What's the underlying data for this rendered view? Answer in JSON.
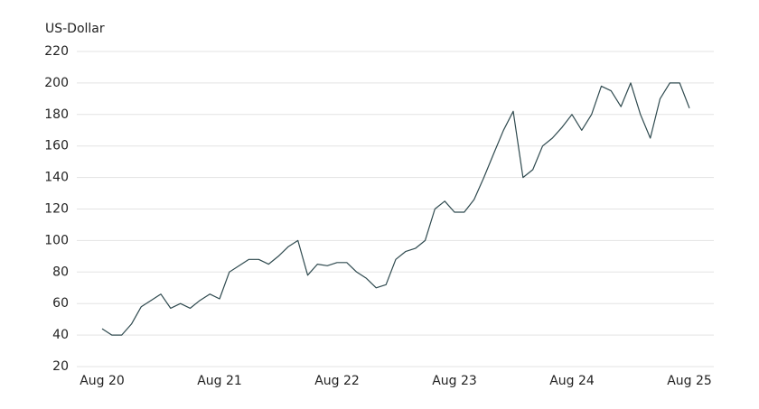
{
  "chart_data": {
    "type": "line",
    "y_label": "US-Dollar",
    "x": [
      "2020-08",
      "2020-09",
      "2020-10",
      "2020-11",
      "2020-12",
      "2021-01",
      "2021-02",
      "2021-03",
      "2021-04",
      "2021-05",
      "2021-06",
      "2021-07",
      "2021-08",
      "2021-09",
      "2021-10",
      "2021-11",
      "2021-12",
      "2022-01",
      "2022-02",
      "2022-03",
      "2022-04",
      "2022-05",
      "2022-06",
      "2022-07",
      "2022-08",
      "2022-09",
      "2022-10",
      "2022-11",
      "2022-12",
      "2023-01",
      "2023-02",
      "2023-03",
      "2023-04",
      "2023-05",
      "2023-06",
      "2023-07",
      "2023-08",
      "2023-09",
      "2023-10",
      "2023-11",
      "2023-12",
      "2024-01",
      "2024-02",
      "2024-03",
      "2024-04",
      "2024-05",
      "2024-06",
      "2024-07",
      "2024-08",
      "2024-09",
      "2024-10",
      "2024-11",
      "2024-12",
      "2025-01",
      "2025-02",
      "2025-03",
      "2025-04",
      "2025-05",
      "2025-06",
      "2025-07",
      "2025-08"
    ],
    "series": [
      {
        "name": "US-Dollar",
        "color": "#2f4a4f",
        "values": [
          44,
          40,
          40,
          47,
          58,
          62,
          66,
          57,
          60,
          57,
          62,
          66,
          63,
          80,
          84,
          88,
          88,
          85,
          90,
          96,
          100,
          78,
          85,
          84,
          86,
          86,
          80,
          76,
          70,
          72,
          88,
          93,
          95,
          100,
          120,
          125,
          118,
          118,
          126,
          140,
          155,
          170,
          182,
          140,
          145,
          160,
          165,
          172,
          180,
          170,
          180,
          198,
          195,
          185,
          200,
          180,
          165,
          190,
          200,
          200,
          184
        ]
      }
    ],
    "xticks": [
      {
        "value": "2020-08",
        "label": "Aug 20"
      },
      {
        "value": "2021-08",
        "label": "Aug 21"
      },
      {
        "value": "2022-08",
        "label": "Aug 22"
      },
      {
        "value": "2023-08",
        "label": "Aug 23"
      },
      {
        "value": "2024-08",
        "label": "Aug 24"
      },
      {
        "value": "2025-08",
        "label": "Aug 25"
      }
    ],
    "ylim": [
      20,
      220
    ],
    "yticks": [
      20,
      40,
      60,
      80,
      100,
      120,
      140,
      160,
      180,
      200,
      220
    ],
    "grid": true
  }
}
